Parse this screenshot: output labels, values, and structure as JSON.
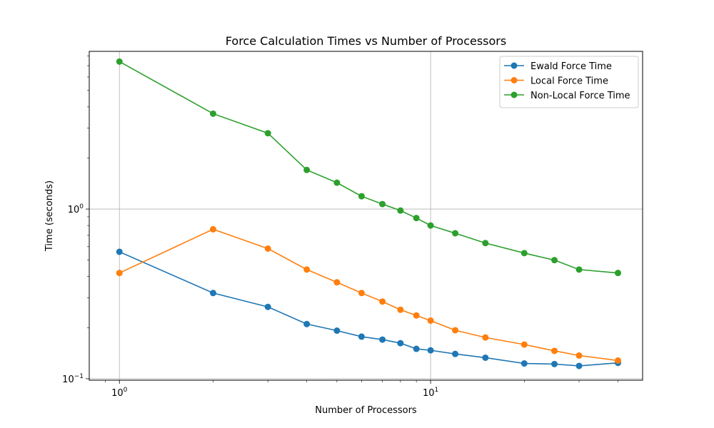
{
  "chart_data": {
    "type": "line",
    "title": "Force Calculation Times vs Number of Processors",
    "xlabel": "Number of Processors",
    "ylabel": "Time (seconds)",
    "xscale": "log",
    "yscale": "log",
    "xlim": [
      0.8,
      48
    ],
    "ylim": [
      0.098,
      8.5
    ],
    "grid": "major",
    "legend_position": "top-right",
    "x_ticks": [
      {
        "value": 1,
        "base": "10",
        "exp": "0"
      },
      {
        "value": 10,
        "base": "10",
        "exp": "1"
      }
    ],
    "y_ticks": [
      {
        "value": 0.1,
        "base": "10",
        "exp": "−1"
      },
      {
        "value": 1,
        "base": "10",
        "exp": "0"
      }
    ],
    "x": [
      1,
      2,
      3,
      4,
      5,
      6,
      7,
      8,
      9,
      10,
      12,
      15,
      20,
      25,
      30,
      40
    ],
    "series": [
      {
        "name": "Ewald Force Time",
        "color": "#1f77b4",
        "values": [
          0.56,
          0.32,
          0.265,
          0.21,
          0.192,
          0.177,
          0.17,
          0.162,
          0.15,
          0.147,
          0.14,
          0.133,
          0.123,
          0.122,
          0.119,
          0.124
        ]
      },
      {
        "name": "Local Force Time",
        "color": "#ff7f0e",
        "values": [
          0.42,
          0.76,
          0.585,
          0.44,
          0.37,
          0.32,
          0.285,
          0.255,
          0.236,
          0.22,
          0.193,
          0.175,
          0.159,
          0.146,
          0.137,
          0.128
        ]
      },
      {
        "name": "Non-Local Force Time",
        "color": "#2ca02c",
        "values": [
          7.4,
          3.65,
          2.8,
          1.7,
          1.43,
          1.19,
          1.07,
          0.98,
          0.885,
          0.8,
          0.72,
          0.63,
          0.55,
          0.5,
          0.44,
          0.42
        ]
      }
    ]
  }
}
